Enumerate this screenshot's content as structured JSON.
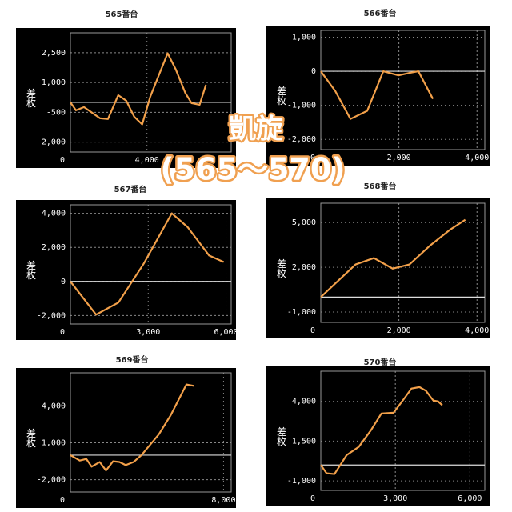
{
  "banner": {
    "line1": "凱旋",
    "line2": "(565〜570)"
  },
  "chart_data": [
    {
      "type": "line",
      "title": "565番台",
      "y_label": "差枚",
      "color": "#f2a04a",
      "hline": 0,
      "x": [
        0,
        290,
        710,
        1130,
        1540,
        1960,
        2500,
        2920,
        3330,
        3750,
        4170,
        4580,
        5080,
        5500,
        6000,
        6330,
        6750,
        7080
      ],
      "values": [
        0,
        -400,
        -240,
        -520,
        -800,
        -840,
        360,
        80,
        -720,
        -1110,
        280,
        1270,
        2470,
        1670,
        480,
        -40,
        -120,
        880
      ],
      "xlim": [
        0,
        8400
      ],
      "xticks": [
        0,
        {
          "value": 4000,
          "label": "4,000"
        }
      ],
      "ylim": [
        -2500,
        3500
      ],
      "yticks": [
        {
          "value": 2500,
          "label": "2,500"
        },
        {
          "value": 1000,
          "label": "1,000"
        },
        -500,
        {
          "value": -2000,
          "label": "-2,000"
        }
      ]
    },
    {
      "type": "line",
      "title": "566番台",
      "y_label": "差枚",
      "color": "#f2a04a",
      "hline": 0,
      "x": [
        0,
        370,
        760,
        1190,
        1600,
        1990,
        2260,
        2500,
        2870
      ],
      "values": [
        0,
        -580,
        -1400,
        -1160,
        0,
        -120,
        -50,
        0,
        -810
      ],
      "xlim": [
        0,
        4200
      ],
      "xticks": [
        0,
        {
          "value": 2000,
          "label": "2,000"
        },
        {
          "value": 4000,
          "label": "4,000"
        }
      ],
      "ylim": [
        -2300,
        1200
      ],
      "yticks": [
        {
          "value": 1000,
          "label": "1,000"
        },
        0,
        {
          "value": -1000,
          "label": "-1,000"
        },
        {
          "value": -2000,
          "label": "-2,000"
        }
      ]
    },
    {
      "type": "line",
      "title": "567番台",
      "y_label": "差枚",
      "color": "#f2a04a",
      "hline": 0,
      "x": [
        0,
        990,
        1850,
        2830,
        3910,
        4520,
        5350,
        5910
      ],
      "values": [
        0,
        -1950,
        -1240,
        1050,
        4000,
        3190,
        1520,
        1140
      ],
      "xlim": [
        0,
        6200
      ],
      "xticks": [
        0,
        {
          "value": 3000,
          "label": "3,000"
        },
        {
          "value": 6000,
          "label": "6,000"
        }
      ],
      "ylim": [
        -2500,
        4500
      ],
      "yticks": [
        {
          "value": 4000,
          "label": "4,000"
        },
        {
          "value": 2000,
          "label": "2,000"
        },
        0,
        {
          "value": -2000,
          "label": "-2,000"
        }
      ]
    },
    {
      "type": "line",
      "title": "568番台",
      "y_label": "差枚",
      "color": "#f2a04a",
      "hline": 0,
      "x": [
        0,
        890,
        1360,
        1840,
        2270,
        2790,
        3320,
        3700
      ],
      "values": [
        0,
        2190,
        2620,
        1910,
        2190,
        3440,
        4540,
        5190
      ],
      "xlim": [
        0,
        4200
      ],
      "xticks": [
        0,
        {
          "value": 2000,
          "label": "2,000"
        },
        {
          "value": 4000,
          "label": "4,000"
        }
      ],
      "ylim": [
        -1700,
        6300
      ],
      "yticks": [
        {
          "value": 5000,
          "label": "5,000"
        },
        {
          "value": 2000,
          "label": "2,000"
        },
        {
          "value": -1000,
          "label": "-1,000"
        }
      ]
    },
    {
      "type": "line",
      "title": "569番台",
      "y_label": "差枚",
      "color": "#f2a04a",
      "hline": 0,
      "x": [
        0,
        490,
        830,
        1110,
        1530,
        1860,
        2230,
        2560,
        2890,
        3300,
        3710,
        4620,
        5240,
        6060,
        6470
      ],
      "values": [
        0,
        -440,
        -310,
        -940,
        -560,
        -1250,
        -500,
        -560,
        -810,
        -560,
        0,
        1690,
        3250,
        5750,
        5630
      ],
      "xlim": [
        0,
        8400
      ],
      "xticks": [
        0,
        {
          "value": 8000,
          "label": "8,000"
        }
      ],
      "ylim": [
        -3000,
        6700
      ],
      "yticks": [
        {
          "value": 4000,
          "label": "4,000"
        },
        {
          "value": 1000,
          "label": "1,000"
        },
        {
          "value": -2000,
          "label": "-2,000"
        }
      ]
    },
    {
      "type": "line",
      "title": "570番台",
      "y_label": "差枚",
      "color": "#f2a04a",
      "hline": 0,
      "x": [
        0,
        230,
        550,
        1040,
        1530,
        2020,
        2440,
        2930,
        3320,
        3650,
        3970,
        4230,
        4530,
        4720,
        4890
      ],
      "values": [
        0,
        -520,
        -570,
        620,
        1140,
        2190,
        3240,
        3290,
        4100,
        4810,
        4900,
        4670,
        4050,
        4000,
        3760
      ],
      "xlim": [
        0,
        6600
      ],
      "xticks": [
        0,
        {
          "value": 3000,
          "label": "3,000"
        },
        {
          "value": 6000,
          "label": "6,000"
        }
      ],
      "ylim": [
        -1600,
        5900
      ],
      "yticks": [
        {
          "value": 4000,
          "label": "4,000"
        },
        {
          "value": 1500,
          "label": "1,500"
        },
        {
          "value": -1000,
          "label": "-1,000"
        }
      ]
    }
  ]
}
